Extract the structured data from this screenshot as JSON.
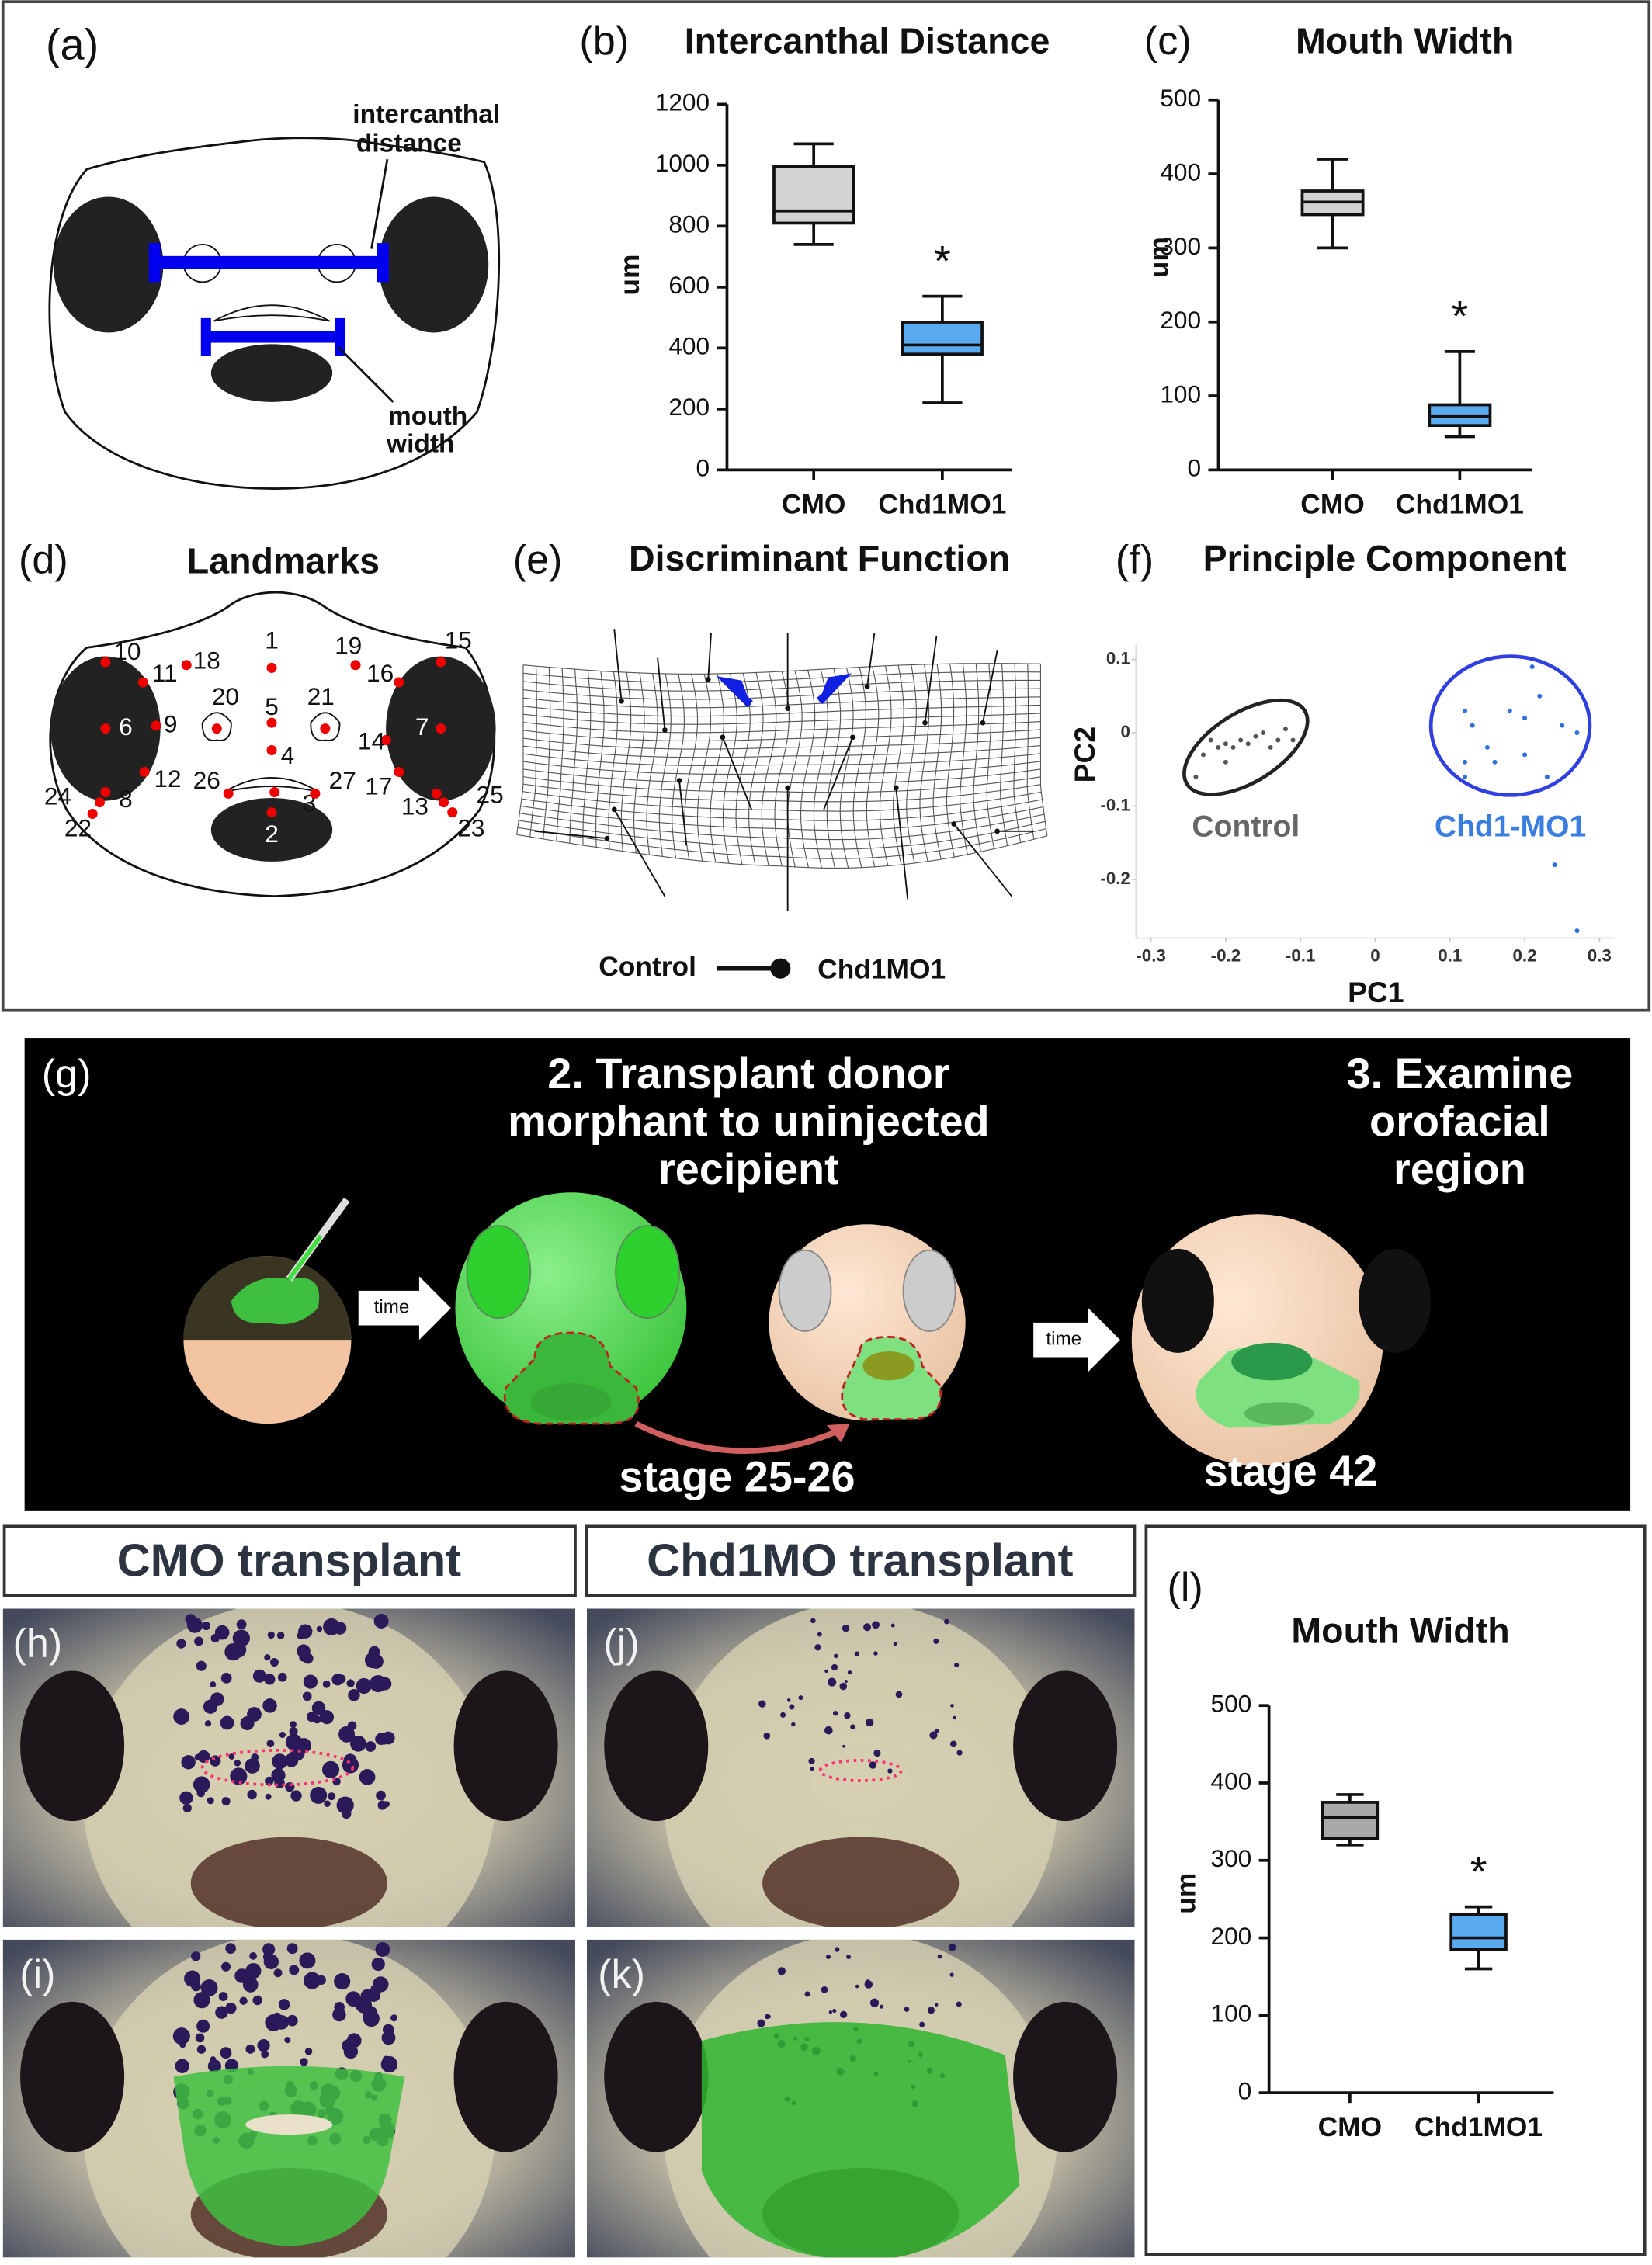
{
  "panels": {
    "a": {
      "label": "(a)",
      "intercanthal": [
        "intercanthal",
        "distance"
      ],
      "mouth": [
        "mouth",
        "width"
      ]
    },
    "d": {
      "label": "(d)",
      "title": "Landmarks",
      "landmarks": [
        "1",
        "2",
        "3",
        "4",
        "5",
        "6",
        "7",
        "8",
        "9",
        "10",
        "11",
        "12",
        "13",
        "14",
        "15",
        "16",
        "17",
        "18",
        "19",
        "20",
        "21",
        "22",
        "23",
        "24",
        "25",
        "26",
        "27"
      ]
    },
    "e": {
      "label": "(e)",
      "title": "Discriminant Function",
      "legend": [
        "Control",
        "Chd1MO1"
      ]
    },
    "g": {
      "label": "(g)",
      "step2": [
        "2. Transplant donor",
        "morphant to uninjected",
        "recipient"
      ],
      "step3": [
        "3. Examine",
        "orofacial",
        "region"
      ],
      "arrows": [
        "time",
        "time"
      ],
      "stages": [
        "stage 25-26",
        "stage 42"
      ]
    },
    "headers": [
      "CMO transplant",
      "Chd1MO transplant"
    ],
    "photos": [
      "(h)",
      "(j)",
      "(i)",
      "(k)"
    ]
  },
  "chart_data": [
    {
      "type": "box",
      "panel_label": "(b)",
      "title": "Intercanthal Distance",
      "y_label": "um",
      "categories": [
        "CMO",
        "Chd1MO1"
      ],
      "boxes": [
        {
          "min": 740,
          "q1": 810,
          "median": 850,
          "q3": 995,
          "max": 1070,
          "color": "#d3d3d3"
        },
        {
          "min": 220,
          "q1": 380,
          "median": 410,
          "q3": 485,
          "max": 570,
          "color": "#5aaaf0"
        }
      ],
      "significance": "*",
      "ylim": [
        0,
        1200
      ],
      "yticks": [
        0,
        200,
        400,
        600,
        800,
        1000,
        1200
      ]
    },
    {
      "type": "box",
      "panel_label": "(c)",
      "title": "Mouth Width",
      "y_label": "um",
      "categories": [
        "CMO",
        "Chd1MO1"
      ],
      "boxes": [
        {
          "min": 300,
          "q1": 345,
          "median": 362,
          "q3": 377,
          "max": 420,
          "color": "#d3d3d3"
        },
        {
          "min": 45,
          "q1": 60,
          "median": 72,
          "q3": 88,
          "max": 160,
          "color": "#5aaaf0"
        }
      ],
      "significance": "*",
      "ylim": [
        0,
        500
      ],
      "yticks": [
        0,
        100,
        200,
        300,
        400,
        500
      ]
    },
    {
      "type": "scatter",
      "panel_label": "(f)",
      "title": "Principle Component",
      "x_label": "PC1",
      "y_label": "PC2",
      "xlim": [
        -0.32,
        0.32
      ],
      "ylim": [
        -0.28,
        0.12
      ],
      "xticks": [
        -0.3,
        -0.2,
        -0.1,
        0,
        0.1,
        0.2,
        0.3
      ],
      "yticks": [
        -0.2,
        -0.1,
        0,
        0.1
      ],
      "series": [
        {
          "name": "Control",
          "color": "#555555",
          "x": [
            -0.22,
            -0.21,
            -0.2,
            -0.19,
            -0.18,
            -0.17,
            -0.16,
            -0.15,
            -0.14,
            -0.13,
            -0.12,
            -0.11,
            -0.23,
            -0.24,
            -0.2
          ],
          "values": [
            -0.01,
            -0.02,
            -0.015,
            -0.02,
            -0.01,
            -0.015,
            -0.005,
            0,
            -0.02,
            -0.01,
            0.005,
            -0.01,
            -0.03,
            -0.06,
            -0.04
          ]
        },
        {
          "name": "Chd1-MO1",
          "color": "#2f6fe0",
          "x": [
            0.12,
            0.13,
            0.15,
            0.12,
            0.18,
            0.2,
            0.21,
            0.22,
            0.25,
            0.27,
            0.2,
            0.23,
            0.16,
            0.12,
            0.24,
            0.27
          ],
          "values": [
            0.03,
            0.01,
            -0.02,
            -0.04,
            0.03,
            0.02,
            0.09,
            0.05,
            0.01,
            0,
            -0.03,
            -0.06,
            -0.04,
            -0.06,
            -0.18,
            -0.27
          ]
        }
      ]
    },
    {
      "type": "box",
      "panel_label": "(l)",
      "title": "Mouth Width",
      "y_label": "um",
      "categories": [
        "CMO",
        "Chd1MO1"
      ],
      "boxes": [
        {
          "min": 320,
          "q1": 328,
          "median": 355,
          "q3": 375,
          "max": 385,
          "color": "#a9a9a9"
        },
        {
          "min": 160,
          "q1": 185,
          "median": 200,
          "q3": 230,
          "max": 240,
          "color": "#5aaaf0"
        }
      ],
      "significance": "*",
      "ylim": [
        0,
        500
      ],
      "yticks": [
        0,
        100,
        200,
        300,
        400,
        500
      ]
    }
  ]
}
